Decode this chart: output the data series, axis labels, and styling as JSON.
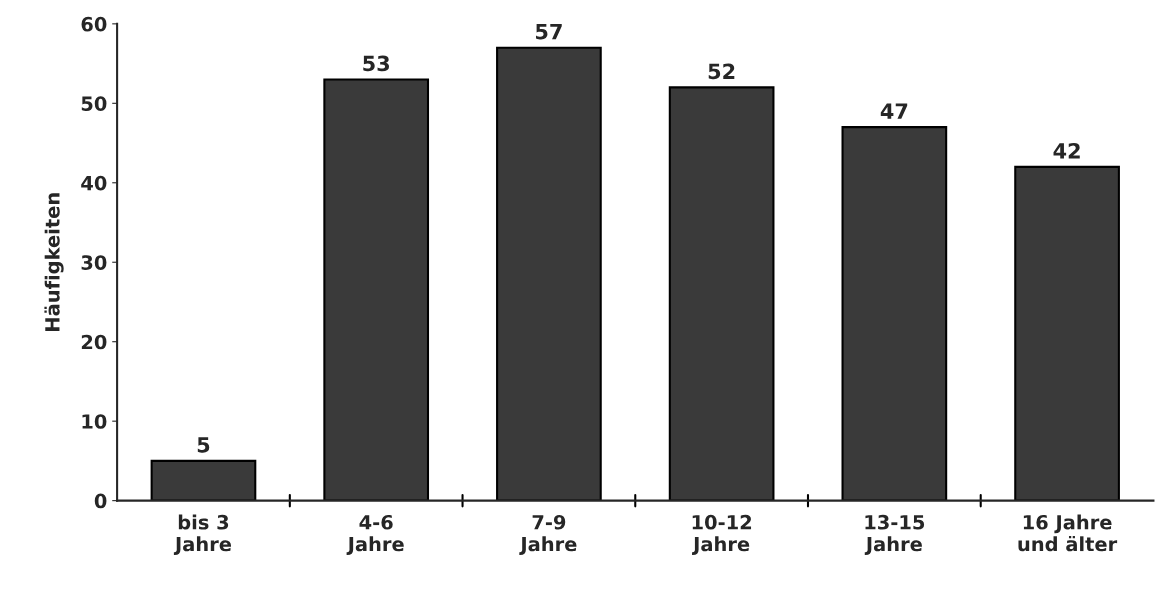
{
  "chart_data": {
    "type": "bar",
    "ylabel": "Häufigkeiten",
    "categories": [
      "bis 3\nJahre",
      "4-6\nJahre",
      "7-9\nJahre",
      "10-12\nJahre",
      "13-15\nJahre",
      "16 Jahre\nund älter"
    ],
    "values": [
      5,
      53,
      57,
      52,
      47,
      42
    ],
    "color": "#3a3a3a",
    "ylim": [
      0,
      60
    ],
    "yticks": [
      0,
      10,
      20,
      30,
      40,
      50,
      60
    ],
    "data_labels": true,
    "grid": false
  }
}
